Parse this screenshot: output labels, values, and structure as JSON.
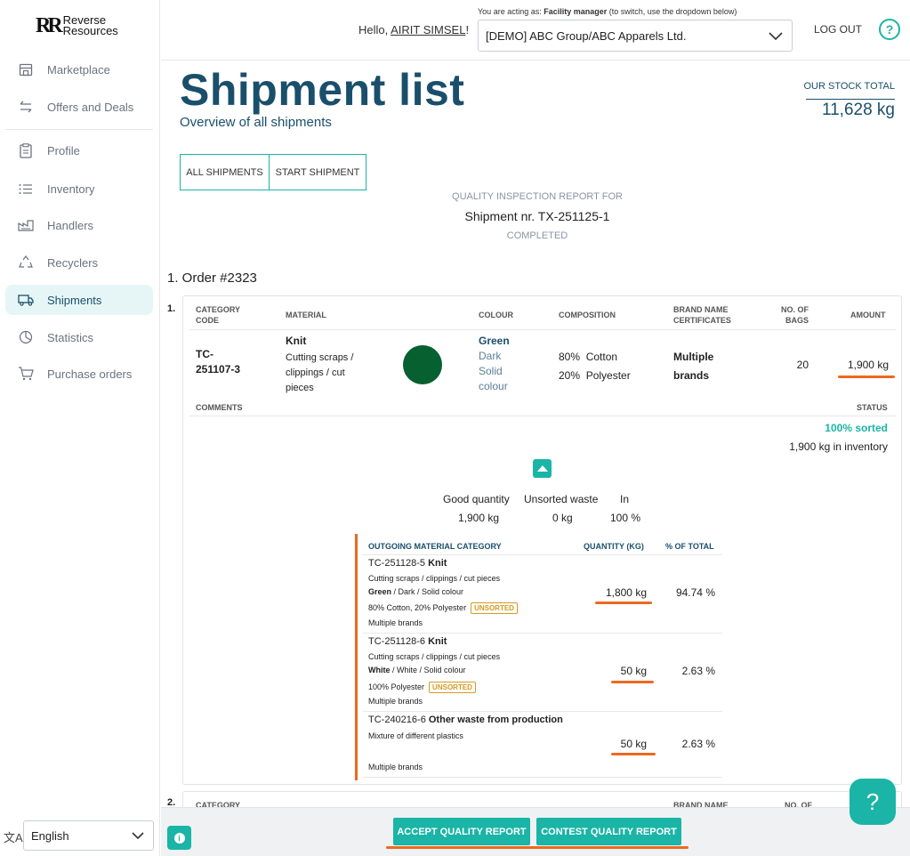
{
  "logo": {
    "mark": "RR",
    "line1": "Reverse",
    "line2": "Resources"
  },
  "sidebar": {
    "items": [
      {
        "label": "Marketplace",
        "icon": "store-icon"
      },
      {
        "label": "Offers and Deals",
        "icon": "swap-arrows-icon"
      },
      {
        "label": "Profile",
        "icon": "clipboard-icon"
      },
      {
        "label": "Inventory",
        "icon": "list-icon"
      },
      {
        "label": "Handlers",
        "icon": "factory-icon"
      },
      {
        "label": "Recyclers",
        "icon": "recycle-icon"
      },
      {
        "label": "Shipments",
        "icon": "truck-icon",
        "active": true
      },
      {
        "label": "Statistics",
        "icon": "pie-chart-icon"
      },
      {
        "label": "Purchase orders",
        "icon": "cart-icon"
      }
    ],
    "language": "English"
  },
  "header": {
    "hello_prefix": "Hello, ",
    "user_name": "AIRIT SIMSEL",
    "hello_suffix": "!",
    "acting_prefix": "You are acting as: ",
    "acting_role": "Facility manager",
    "acting_suffix": " (to switch, use the dropdown below)",
    "org_select": "[DEMO] ABC Group/ABC Apparels Ltd.",
    "logout": "LOG OUT",
    "help": "?"
  },
  "page": {
    "title": "Shipment list",
    "subtitle": "Overview of all shipments",
    "stock_label": "OUR STOCK TOTAL",
    "stock_value": "11,628 kg",
    "tabs": [
      "ALL SHIPMENTS",
      "START SHIPMENT"
    ]
  },
  "report": {
    "title": "QUALITY INSPECTION REPORT FOR",
    "shipment": "Shipment nr. TX-251125-1",
    "status": "COMPLETED",
    "order": "1. Order #2323"
  },
  "item": {
    "number": "1.",
    "headers": {
      "category_code": "CATEGORY\nCODE",
      "material": "MATERIAL",
      "colour": "COLOUR",
      "composition": "COMPOSITION",
      "brand": "BRAND NAME\nCERTIFICATES",
      "bags": "NO. OF\nBAGS",
      "amount": "AMOUNT",
      "comments": "COMMENTS",
      "status": "STATUS"
    },
    "code_line1": "TC-",
    "code_line2": "251107-3",
    "material_name": "Knit",
    "material_desc1": "Cutting scraps /",
    "material_desc2": "clippings / cut",
    "material_desc3": "pieces",
    "colour_dot": "#06602f",
    "colour_name": "Green",
    "colour_shade": "Dark",
    "colour_type1": "Solid",
    "colour_type2": "colour",
    "comp1_pct": "80%",
    "comp1_name": "Cotton",
    "comp2_pct": "20%",
    "comp2_name": "Polyester",
    "brand1": "Multiple",
    "brand2": "brands",
    "bags": "20",
    "amount": "1,900 kg",
    "status_sorted": "100% sorted",
    "status_inventory": "1,900 kg in inventory"
  },
  "summary": {
    "good_label": "Good quantity",
    "good_value": "1,900 kg",
    "waste_label": "Unsorted waste",
    "waste_value": "0 kg",
    "in_label": "In",
    "in_value": "100 %"
  },
  "outgoing": {
    "headers": {
      "category": "OUTGOING MATERIAL CATEGORY",
      "qty": "QUANTITY (KG)",
      "pct": "% OF TOTAL"
    },
    "rows": [
      {
        "code": "TC-251128-5 ",
        "name": "Knit",
        "desc": "Cutting scraps / clippings / cut pieces",
        "colour_bold": "Green",
        "colour_rest": " / Dark / Solid colour",
        "composition": "80% Cotton, 20% Polyester",
        "badge": "UNSORTED",
        "brand": "Multiple brands",
        "qty": "1,800 kg",
        "pct": "94.74 %"
      },
      {
        "code": "TC-251128-6 ",
        "name": "Knit",
        "desc": "Cutting scraps / clippings / cut pieces",
        "colour_bold": "White",
        "colour_rest": " / White / Solid colour",
        "composition": "100% Polyester",
        "badge": "UNSORTED",
        "brand": "Multiple brands",
        "qty": "50 kg",
        "pct": "2.63 %"
      },
      {
        "code": "TC-240216-6 ",
        "name": "Other waste from production",
        "desc": "Mixture of different plastics",
        "brand": "Multiple brands",
        "qty": "50 kg",
        "pct": "2.63 %"
      }
    ]
  },
  "item2": {
    "number": "2.",
    "cat": "CATEGORY",
    "brand": "BRAND NAME",
    "bags": "NO. OF"
  },
  "actions": {
    "accept": "ACCEPT QUALITY REPORT",
    "contest": "CONTEST QUALITY REPORT"
  },
  "fab": "?",
  "accent_color": "#1ab5a6",
  "highlight_color": "#ec6a1f",
  "brand_color": "#1a4f6b"
}
